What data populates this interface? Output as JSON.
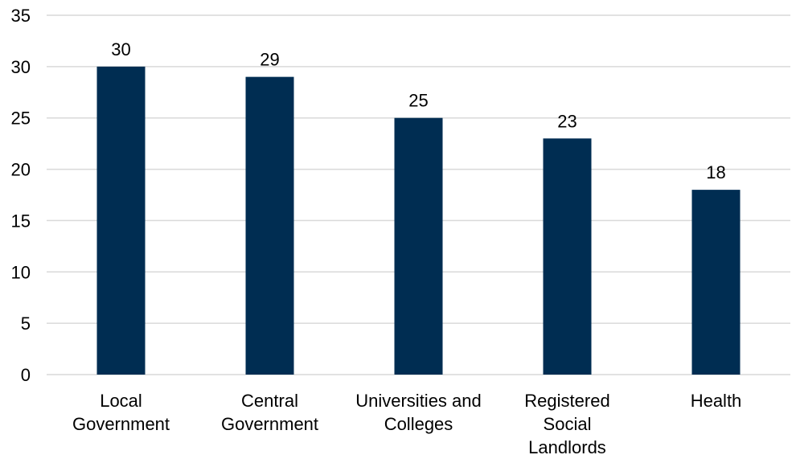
{
  "chart_data": {
    "type": "bar",
    "categories": [
      [
        "Local",
        "Government"
      ],
      [
        "Central",
        "Government"
      ],
      [
        "Universities and",
        "Colleges"
      ],
      [
        "Registered",
        "Social",
        "Landlords"
      ],
      [
        "Health"
      ]
    ],
    "values": [
      30,
      29,
      25,
      23,
      18
    ],
    "data_labels": [
      "30",
      "29",
      "25",
      "23",
      "18"
    ],
    "yticks": [
      0,
      5,
      10,
      15,
      20,
      25,
      30,
      35
    ],
    "ylim": [
      0,
      35
    ],
    "title": "",
    "xlabel": "",
    "ylabel": "",
    "grid": true,
    "legend": "none",
    "colors": {
      "bar": "#002d52",
      "grid": "#d9d9d9"
    }
  }
}
